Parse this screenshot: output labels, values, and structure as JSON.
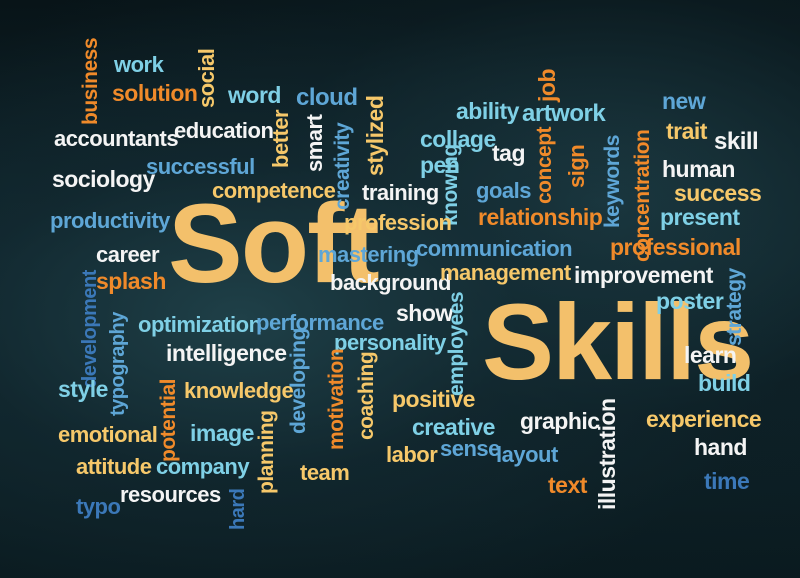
{
  "title_words": {
    "soft": "Soft",
    "skills": "Skills"
  },
  "words": {
    "work": "work",
    "business": "business",
    "solution": "solution",
    "social": "social",
    "word": "word",
    "cloud": "cloud",
    "stylized": "stylized",
    "ability": "ability",
    "job": "job",
    "artwork": "artwork",
    "new": "new",
    "trait": "trait",
    "skill": "skill",
    "accountants": "accountants",
    "education": "education",
    "better": "better",
    "smart": "smart",
    "creativity": "creativity",
    "collage": "collage",
    "pen": "pen",
    "tag": "tag",
    "concept": "concept",
    "sign": "sign",
    "keywords": "keywords",
    "concentration": "concentration",
    "human": "human",
    "success": "success",
    "sociology": "sociology",
    "successful": "successful",
    "competence": "competence",
    "training": "training",
    "knowing": "knowing",
    "goals": "goals",
    "present": "present",
    "productivity": "productivity",
    "profession": "profession",
    "relationship": "relationship",
    "career": "career",
    "mastering": "mastering",
    "communication": "communication",
    "professional": "professional",
    "splash": "splash",
    "background": "background",
    "management": "management",
    "improvement": "improvement",
    "development": "development",
    "poster": "poster",
    "strategy": "strategy",
    "typography": "typography",
    "optimization": "optimization",
    "performance": "performance",
    "show": "show",
    "employees": "employees",
    "intelligence": "intelligence",
    "personality": "personality",
    "learn": "learn",
    "style": "style",
    "knowledge": "knowledge",
    "developing": "developing",
    "motivation": "motivation",
    "coaching": "coaching",
    "positive": "positive",
    "build": "build",
    "emotional": "emotional",
    "potential": "potential",
    "image": "image",
    "planning": "planning",
    "creative": "creative",
    "graphic": "graphic",
    "illustration": "illustration",
    "experience": "experience",
    "labor": "labor",
    "sense": "sense",
    "layout": "layout",
    "hand": "hand",
    "attitude": "attitude",
    "company": "company",
    "team": "team",
    "typo": "typo",
    "resources": "resources",
    "text": "text",
    "time": "time",
    "hard": "hard"
  },
  "colors": {
    "background": "#0b1a20",
    "white": "#f4f4f4",
    "blue": "#5ea6d6",
    "cyan": "#7fd0e6",
    "orange": "#f08a2a",
    "yellow": "#f6c86a",
    "light": "#fde3a8",
    "green": "#b9d46a",
    "navy": "#3b78b8"
  }
}
